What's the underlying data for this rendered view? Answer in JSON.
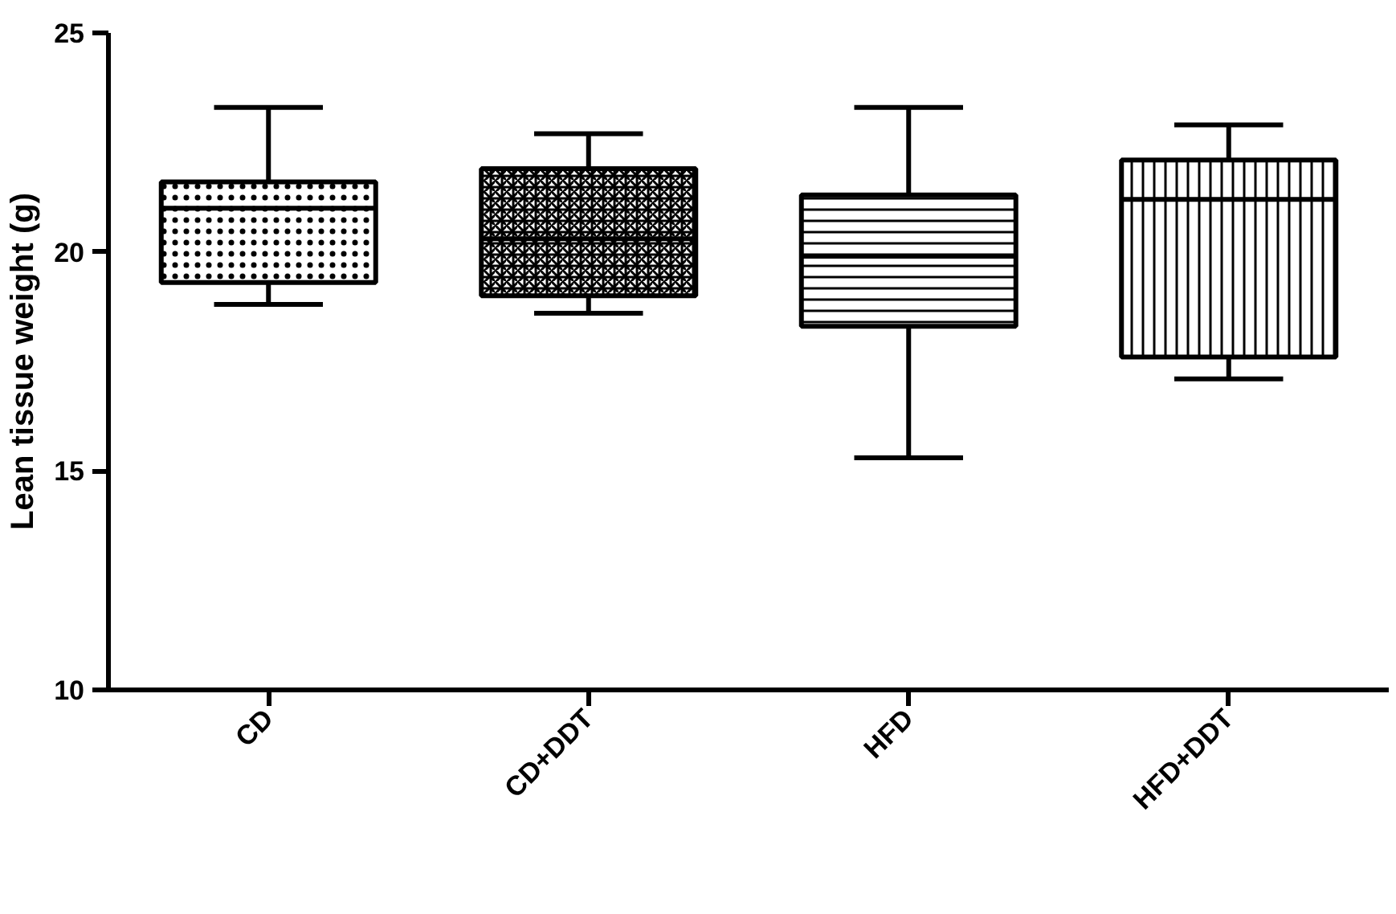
{
  "chart_data": {
    "type": "box",
    "ylabel": "Lean tissue weight (g)",
    "categories": [
      "CD",
      "CD+DDT",
      "HFD",
      "HFD+DDT"
    ],
    "boxes": [
      {
        "low": 18.8,
        "q1": 19.3,
        "median": 21.0,
        "q3": 21.6,
        "high": 23.3
      },
      {
        "low": 18.6,
        "q1": 19.0,
        "median": 20.3,
        "q3": 21.9,
        "high": 22.7
      },
      {
        "low": 15.3,
        "q1": 18.3,
        "median": 19.9,
        "q3": 21.3,
        "high": 23.3
      },
      {
        "low": 17.1,
        "q1": 17.6,
        "median": 21.2,
        "q3": 22.1,
        "high": 22.9
      }
    ],
    "ylim": [
      10,
      25
    ],
    "yticks": [
      10,
      15,
      20,
      25
    ],
    "grid": false
  }
}
